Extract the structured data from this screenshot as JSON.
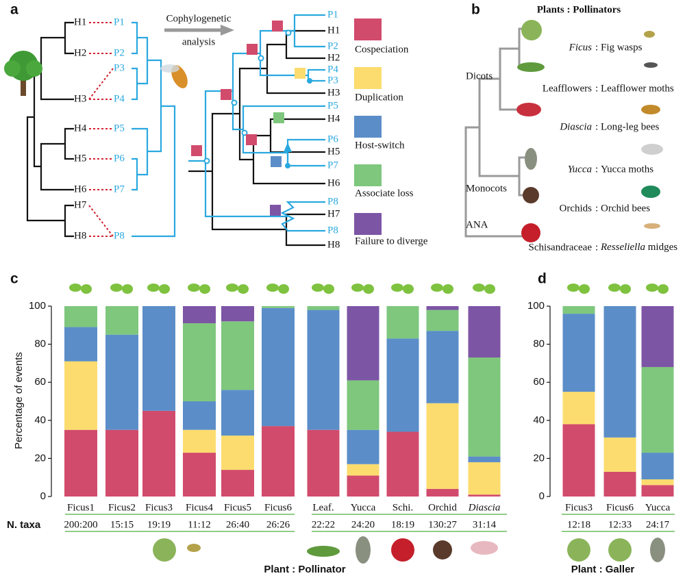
{
  "panel_labels": [
    "a",
    "b",
    "c",
    "d"
  ],
  "panel_a": {
    "host_tips": [
      "H1",
      "H2",
      "H3",
      "H4",
      "H5",
      "H6",
      "H7",
      "H8"
    ],
    "parasite_tips": [
      "P1",
      "P2",
      "P3",
      "P4",
      "P5",
      "P6",
      "P7",
      "P8"
    ],
    "arrow_label": [
      "Cophylogenetic",
      "analysis"
    ],
    "reconciled_tips": [
      "P1",
      "H1",
      "P2",
      "H2",
      "P4",
      "P3",
      "H3",
      "P5",
      "H4",
      "P6",
      "H5",
      "P7",
      "H6",
      "P8",
      "H7",
      "P8",
      "H8"
    ]
  },
  "panel_b": {
    "header": "Plants : Pollinators",
    "separator": ":",
    "rows": [
      {
        "plant": "Ficus",
        "pollinator": "Fig wasps",
        "italic": "plant"
      },
      {
        "plant": "Leafflowers",
        "pollinator": "Leafflower moths"
      },
      {
        "plant": "Diascia",
        "pollinator": "Long-leg bees",
        "italic": "plant"
      },
      {
        "plant": "Yucca",
        "pollinator": "Yucca moths",
        "italic": "plant"
      },
      {
        "plant": "Orchids",
        "pollinator": "Orchid bees"
      },
      {
        "plant": "Schisandraceae",
        "pollinator": "Resseliella midges",
        "italic": "genus"
      }
    ],
    "clades": [
      "Dicots",
      "Monocots",
      "ANA"
    ]
  },
  "panel_c": {
    "axis_label": "Percentage of events",
    "n_taxa_label": "N. taxa",
    "footer": "Plant : Pollinator"
  },
  "panel_d": {
    "footer": "Plant : Galler"
  },
  "chart_data": [
    {
      "type": "bar",
      "stacked": true,
      "categories": [
        "Ficus1",
        "Ficus2",
        "Ficus3",
        "Ficus4",
        "Ficus5",
        "Ficus6"
      ],
      "n_taxa": [
        "200:200",
        "15:15",
        "19:19",
        "11:12",
        "26:40",
        "26:26"
      ],
      "ylim": [
        0,
        100
      ],
      "yticks": [
        0,
        20,
        40,
        60,
        80,
        100
      ],
      "series": [
        {
          "name": "Cospeciation",
          "color": "#d14b6c",
          "values": [
            35,
            35,
            45,
            23,
            14,
            37
          ]
        },
        {
          "name": "Duplication",
          "color": "#fcdc6e",
          "values": [
            36,
            0,
            0,
            12,
            18,
            0
          ]
        },
        {
          "name": "Host-switch",
          "color": "#5b8ec8",
          "values": [
            18,
            50,
            55,
            15,
            24,
            62
          ]
        },
        {
          "name": "Associate loss",
          "color": "#7ec77d",
          "values": [
            11,
            15,
            0,
            41,
            36,
            1
          ]
        },
        {
          "name": "Failure to diverge",
          "color": "#7d55a5",
          "values": [
            0,
            0,
            0,
            9,
            8,
            0
          ]
        }
      ]
    },
    {
      "type": "bar",
      "stacked": true,
      "categories": [
        "Leaf.",
        "Yucca",
        "Schi.",
        "Orchid",
        "Diascia"
      ],
      "n_taxa": [
        "22:22",
        "24:20",
        "18:19",
        "130:27",
        "31:14"
      ],
      "ylim": [
        0,
        100
      ],
      "series": [
        {
          "color": "#d14b6c",
          "values": [
            35,
            11,
            34,
            4,
            1
          ]
        },
        {
          "color": "#fcdc6e",
          "values": [
            0,
            6,
            0,
            45,
            17
          ]
        },
        {
          "color": "#5b8ec8",
          "values": [
            63,
            18,
            49,
            38,
            3
          ]
        },
        {
          "color": "#7ec77d",
          "values": [
            2,
            26,
            17,
            11,
            52
          ]
        },
        {
          "color": "#7d55a5",
          "values": [
            0,
            39,
            0,
            2,
            27
          ]
        }
      ]
    },
    {
      "type": "bar",
      "stacked": true,
      "categories": [
        "Ficus3",
        "Ficus6",
        "Yucca"
      ],
      "n_taxa": [
        "12:18",
        "12:33",
        "24:17"
      ],
      "ylim": [
        0,
        100
      ],
      "yticks": [
        0,
        20,
        40,
        60,
        80,
        100
      ],
      "series": [
        {
          "color": "#d14b6c",
          "values": [
            38,
            13,
            6
          ]
        },
        {
          "color": "#fcdc6e",
          "values": [
            17,
            18,
            3
          ]
        },
        {
          "color": "#5b8ec8",
          "values": [
            41,
            69,
            14
          ]
        },
        {
          "color": "#7ec77d",
          "values": [
            4,
            0,
            45
          ]
        },
        {
          "color": "#7d55a5",
          "values": [
            0,
            0,
            32
          ]
        }
      ]
    }
  ]
}
